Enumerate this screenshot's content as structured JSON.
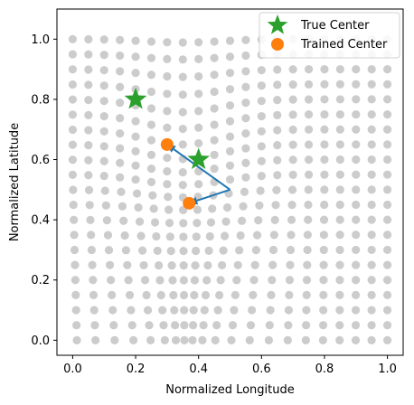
{
  "chart_data": {
    "type": "scatter",
    "xlabel": "Normalized Longitude",
    "ylabel": "Normalized Latitude",
    "xlim": [
      -0.05,
      1.05
    ],
    "ylim": [
      -0.05,
      1.1
    ],
    "xticks": [
      "0.0",
      "0.2",
      "0.4",
      "0.6",
      "0.8",
      "1.0"
    ],
    "yticks": [
      "0.0",
      "0.2",
      "0.4",
      "0.6",
      "0.8",
      "1.0"
    ],
    "grid": false,
    "legend_position": "top-right",
    "background_grid": {
      "description_color": "#cccccc",
      "cols": 21,
      "rows": 21
    },
    "series": [
      {
        "name": "True Center",
        "marker": "star",
        "color": "#2ca02c",
        "points": [
          [
            0.2,
            0.8
          ],
          [
            0.4,
            0.6
          ]
        ]
      },
      {
        "name": "Trained Center",
        "marker": "circle",
        "color": "#ff7f0e",
        "points": [
          [
            0.3,
            0.65
          ],
          [
            0.37,
            0.455
          ]
        ]
      }
    ],
    "arrows": [
      {
        "from": [
          0.5,
          0.5
        ],
        "to": [
          0.3,
          0.65
        ],
        "color": "#1f77b4"
      },
      {
        "from": [
          0.5,
          0.5
        ],
        "to": [
          0.37,
          0.455
        ],
        "color": "#1f77b4"
      }
    ]
  }
}
